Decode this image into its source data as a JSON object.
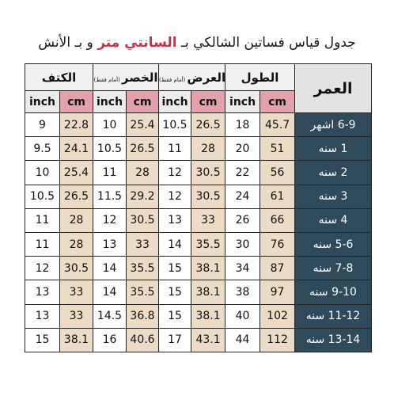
{
  "title": {
    "prefix": "جدول قياس فساتين الشالكي بـ ",
    "highlight": "السانتي متر",
    "suffix": " و بـ الأنش"
  },
  "groups": [
    {
      "name": "الكتف",
      "note": ""
    },
    {
      "name": "الخصر",
      "note": "(أمام فقط)"
    },
    {
      "name": "العرض",
      "note": "(أمام فقط)"
    },
    {
      "name": "الطول",
      "note": ""
    }
  ],
  "units": {
    "inch": "inch",
    "cm": "cm"
  },
  "age_header": "العمر",
  "rows": [
    {
      "age": "6-9 اشهر",
      "length_cm": "45.7",
      "length_in": "18",
      "width_cm": "26.5",
      "width_in": "10.5",
      "waist_cm": "25.4",
      "waist_in": "10",
      "shoulder_cm": "22.8",
      "shoulder_in": "9"
    },
    {
      "age": "1 سنه",
      "length_cm": "51",
      "length_in": "20",
      "width_cm": "28",
      "width_in": "11",
      "waist_cm": "26.5",
      "waist_in": "10.5",
      "shoulder_cm": "24.1",
      "shoulder_in": "9.5"
    },
    {
      "age": "2 سنه",
      "length_cm": "56",
      "length_in": "22",
      "width_cm": "30.5",
      "width_in": "12",
      "waist_cm": "28",
      "waist_in": "11",
      "shoulder_cm": "25.4",
      "shoulder_in": "10"
    },
    {
      "age": "3 سنه",
      "length_cm": "61",
      "length_in": "24",
      "width_cm": "30.5",
      "width_in": "12",
      "waist_cm": "29.2",
      "waist_in": "11.5",
      "shoulder_cm": "26.5",
      "shoulder_in": "10.5"
    },
    {
      "age": "4 سنه",
      "length_cm": "66",
      "length_in": "26",
      "width_cm": "33",
      "width_in": "13",
      "waist_cm": "30.5",
      "waist_in": "12",
      "shoulder_cm": "28",
      "shoulder_in": "11"
    },
    {
      "age": "5-6 سنه",
      "length_cm": "76",
      "length_in": "30",
      "width_cm": "35.5",
      "width_in": "14",
      "waist_cm": "33",
      "waist_in": "13",
      "shoulder_cm": "28",
      "shoulder_in": "11"
    },
    {
      "age": "7-8 سنه",
      "length_cm": "87",
      "length_in": "34",
      "width_cm": "38.1",
      "width_in": "15",
      "waist_cm": "35.5",
      "waist_in": "14",
      "shoulder_cm": "30.5",
      "shoulder_in": "12"
    },
    {
      "age": "9-10 سنه",
      "length_cm": "97",
      "length_in": "38",
      "width_cm": "38.1",
      "width_in": "15",
      "waist_cm": "35.5",
      "waist_in": "14",
      "shoulder_cm": "33",
      "shoulder_in": "13"
    },
    {
      "age": "11-12 سنه",
      "length_cm": "102",
      "length_in": "40",
      "width_cm": "38.1",
      "width_in": "15",
      "waist_cm": "36.8",
      "waist_in": "14.5",
      "shoulder_cm": "33",
      "shoulder_in": "13"
    },
    {
      "age": "13-14 سنه",
      "length_cm": "112",
      "length_in": "44",
      "width_cm": "43.1",
      "width_in": "17",
      "waist_cm": "40.6",
      "waist_in": "16",
      "shoulder_cm": "38.1",
      "shoulder_in": "15"
    }
  ]
}
